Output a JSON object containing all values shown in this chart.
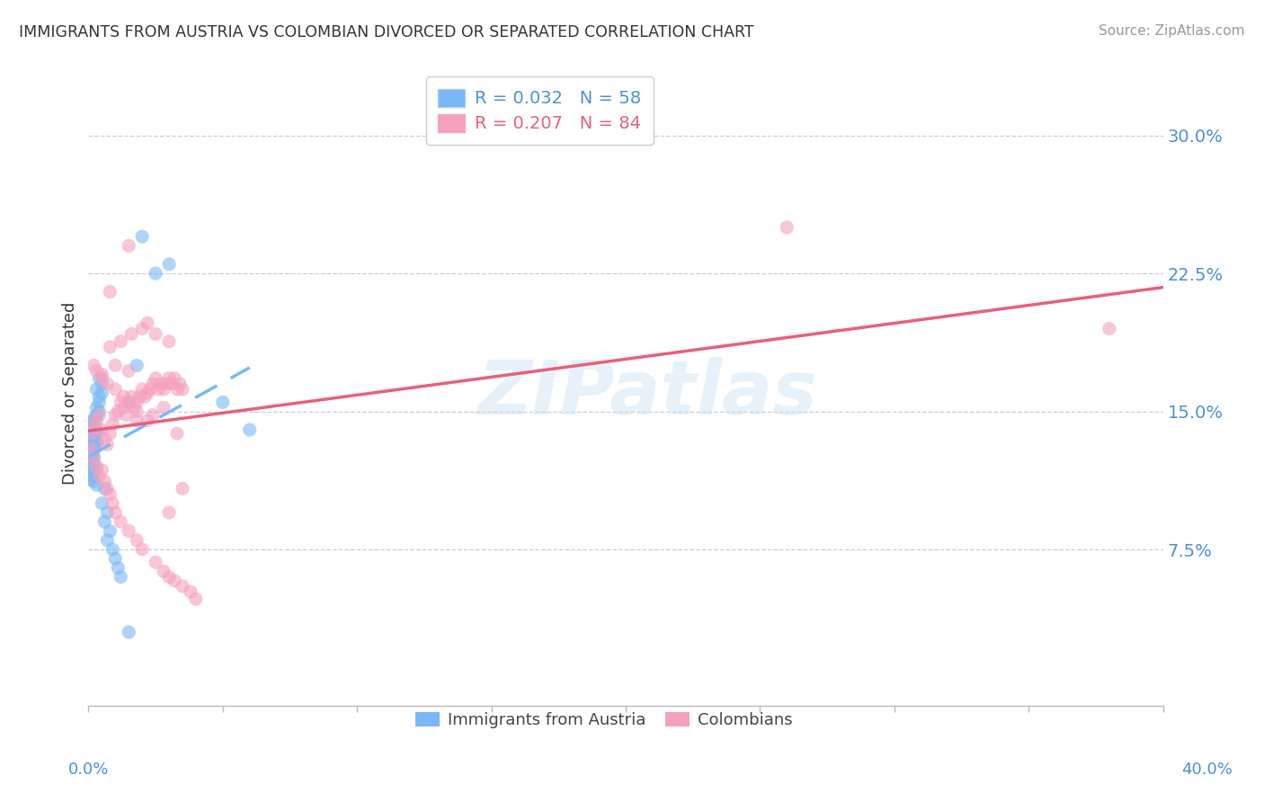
{
  "title": "IMMIGRANTS FROM AUSTRIA VS COLOMBIAN DIVORCED OR SEPARATED CORRELATION CHART",
  "source": "Source: ZipAtlas.com",
  "ylabel": "Divorced or Separated",
  "yticks": [
    0.0,
    0.075,
    0.15,
    0.225,
    0.3
  ],
  "ytick_labels": [
    "",
    "7.5%",
    "15.0%",
    "22.5%",
    "30.0%"
  ],
  "xlim": [
    0.0,
    0.4
  ],
  "ylim": [
    -0.01,
    0.33
  ],
  "blue_R": 0.032,
  "blue_N": 58,
  "pink_R": 0.207,
  "pink_N": 84,
  "blue_color": "#7ab8f5",
  "pink_color": "#f5a0be",
  "blue_line_color": "#7ab8f5",
  "pink_line_color": "#e8607a",
  "legend_label_blue": "Immigrants from Austria",
  "legend_label_pink": "Colombians",
  "watermark": "ZIPatlas",
  "blue_scatter_x": [
    0.001,
    0.002,
    0.001,
    0.003,
    0.001,
    0.002,
    0.003,
    0.001,
    0.002,
    0.001,
    0.002,
    0.001,
    0.003,
    0.002,
    0.001,
    0.002,
    0.001,
    0.002,
    0.001,
    0.003,
    0.001,
    0.002,
    0.001,
    0.002,
    0.001,
    0.003,
    0.002,
    0.001,
    0.003,
    0.002,
    0.004,
    0.003,
    0.002,
    0.004,
    0.003,
    0.005,
    0.004,
    0.003,
    0.005,
    0.004,
    0.006,
    0.005,
    0.007,
    0.006,
    0.008,
    0.007,
    0.009,
    0.01,
    0.011,
    0.012,
    0.015,
    0.018,
    0.02,
    0.025,
    0.03,
    0.05,
    0.06,
    0.015
  ],
  "blue_scatter_y": [
    0.135,
    0.13,
    0.125,
    0.14,
    0.145,
    0.13,
    0.135,
    0.128,
    0.132,
    0.127,
    0.136,
    0.131,
    0.133,
    0.129,
    0.14,
    0.138,
    0.142,
    0.136,
    0.134,
    0.139,
    0.12,
    0.125,
    0.118,
    0.122,
    0.115,
    0.119,
    0.117,
    0.113,
    0.11,
    0.112,
    0.15,
    0.148,
    0.145,
    0.155,
    0.152,
    0.16,
    0.158,
    0.162,
    0.165,
    0.168,
    0.108,
    0.1,
    0.095,
    0.09,
    0.085,
    0.08,
    0.075,
    0.07,
    0.065,
    0.06,
    0.155,
    0.175,
    0.245,
    0.225,
    0.23,
    0.155,
    0.14,
    0.03
  ],
  "pink_scatter_x": [
    0.001,
    0.002,
    0.003,
    0.004,
    0.005,
    0.006,
    0.007,
    0.008,
    0.009,
    0.01,
    0.011,
    0.012,
    0.013,
    0.014,
    0.015,
    0.016,
    0.017,
    0.018,
    0.019,
    0.02,
    0.021,
    0.022,
    0.023,
    0.024,
    0.025,
    0.026,
    0.027,
    0.028,
    0.029,
    0.03,
    0.031,
    0.032,
    0.033,
    0.034,
    0.035,
    0.001,
    0.002,
    0.003,
    0.004,
    0.005,
    0.006,
    0.007,
    0.008,
    0.009,
    0.01,
    0.012,
    0.015,
    0.018,
    0.02,
    0.025,
    0.028,
    0.03,
    0.032,
    0.035,
    0.038,
    0.04,
    0.02,
    0.025,
    0.03,
    0.015,
    0.01,
    0.005,
    0.008,
    0.012,
    0.016,
    0.022,
    0.018,
    0.024,
    0.028,
    0.033,
    0.002,
    0.003,
    0.005,
    0.007,
    0.01,
    0.013,
    0.018,
    0.022,
    0.26,
    0.38,
    0.015,
    0.008,
    0.035,
    0.03
  ],
  "pink_scatter_y": [
    0.138,
    0.142,
    0.145,
    0.148,
    0.14,
    0.135,
    0.132,
    0.138,
    0.143,
    0.148,
    0.15,
    0.155,
    0.152,
    0.148,
    0.155,
    0.158,
    0.152,
    0.155,
    0.158,
    0.162,
    0.158,
    0.16,
    0.162,
    0.165,
    0.168,
    0.162,
    0.165,
    0.162,
    0.165,
    0.168,
    0.165,
    0.168,
    0.162,
    0.165,
    0.162,
    0.13,
    0.125,
    0.12,
    0.115,
    0.118,
    0.112,
    0.108,
    0.105,
    0.1,
    0.095,
    0.09,
    0.085,
    0.08,
    0.075,
    0.068,
    0.063,
    0.06,
    0.058,
    0.055,
    0.052,
    0.048,
    0.195,
    0.192,
    0.188,
    0.172,
    0.175,
    0.17,
    0.185,
    0.188,
    0.192,
    0.198,
    0.145,
    0.148,
    0.152,
    0.138,
    0.175,
    0.172,
    0.168,
    0.165,
    0.162,
    0.158,
    0.15,
    0.145,
    0.25,
    0.195,
    0.24,
    0.215,
    0.108,
    0.095
  ]
}
